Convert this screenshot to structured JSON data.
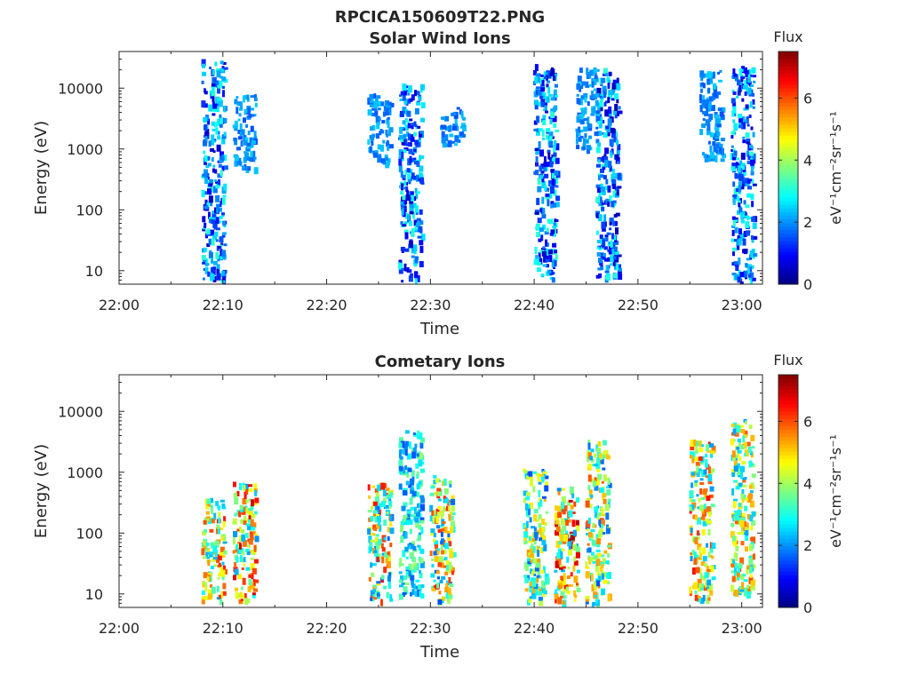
{
  "figure": {
    "title": "RPCICA150609T22.PNG"
  },
  "chart_data": [
    {
      "type": "heatmap",
      "title": "Solar Wind Ions",
      "xlabel": "Time",
      "ylabel": "Energy (eV)",
      "yscale": "log",
      "ylim": [
        6,
        40000
      ],
      "xlim": [
        "22:00",
        "23:02"
      ],
      "x_ticks": [
        "22:00",
        "22:10",
        "22:20",
        "22:30",
        "22:40",
        "22:50",
        "23:00"
      ],
      "y_ticks": [
        "10",
        "100",
        "1000",
        "10000"
      ],
      "colorbar": {
        "title": "Flux",
        "label": "eV⁻¹cm⁻²sr⁻¹s⁻¹",
        "range": [
          0,
          7.5
        ],
        "ticks": [
          "0",
          "2",
          "4",
          "6"
        ],
        "colormap": "jet"
      },
      "clusters": [
        {
          "time": "22:09",
          "energy_range": [
            6,
            30000
          ],
          "flux_range": [
            0.5,
            3.2
          ]
        },
        {
          "time": "22:12",
          "energy_range": [
            500,
            8000
          ],
          "flux_range": [
            1.5,
            2.5
          ]
        },
        {
          "time": "22:25",
          "energy_range": [
            600,
            9000
          ],
          "flux_range": [
            1.5,
            2.5
          ]
        },
        {
          "time": "22:28",
          "energy_range": [
            6,
            12000
          ],
          "flux_range": [
            0.5,
            3.2
          ]
        },
        {
          "time": "22:32",
          "energy_range": [
            1200,
            5000
          ],
          "flux_range": [
            1.5,
            2.5
          ]
        },
        {
          "time": "22:41",
          "energy_range": [
            6,
            25000
          ],
          "flux_range": [
            0.4,
            3.2
          ]
        },
        {
          "time": "22:45",
          "energy_range": [
            1000,
            22000
          ],
          "flux_range": [
            1.5,
            2.5
          ]
        },
        {
          "time": "22:47",
          "energy_range": [
            6,
            22000
          ],
          "flux_range": [
            0.4,
            3.2
          ]
        },
        {
          "time": "22:57",
          "energy_range": [
            700,
            20000
          ],
          "flux_range": [
            1.5,
            2.5
          ]
        },
        {
          "time": "23:00",
          "energy_range": [
            6,
            25000
          ],
          "flux_range": [
            0.5,
            3.2
          ]
        }
      ]
    },
    {
      "type": "heatmap",
      "title": "Cometary Ions",
      "xlabel": "Time",
      "ylabel": "Energy (eV)",
      "yscale": "log",
      "ylim": [
        6,
        40000
      ],
      "xlim": [
        "22:00",
        "23:02"
      ],
      "x_ticks": [
        "22:00",
        "22:10",
        "22:20",
        "22:30",
        "22:40",
        "22:50",
        "23:00"
      ],
      "y_ticks": [
        "10",
        "100",
        "1000",
        "10000"
      ],
      "colorbar": {
        "title": "Flux",
        "label": "eV⁻¹cm⁻²sr⁻¹s⁻¹",
        "range": [
          0,
          7.5
        ],
        "ticks": [
          "0",
          "2",
          "4",
          "6"
        ],
        "colormap": "jet"
      },
      "clusters": [
        {
          "time": "22:09",
          "energy_range": [
            8,
            400
          ],
          "flux_range": [
            2.0,
            6.5
          ]
        },
        {
          "time": "22:12",
          "energy_range": [
            8,
            700
          ],
          "flux_range": [
            2.0,
            7.0
          ]
        },
        {
          "time": "22:25",
          "energy_range": [
            8,
            700
          ],
          "flux_range": [
            1.5,
            6.5
          ]
        },
        {
          "time": "22:28",
          "energy_range": [
            10,
            5000
          ],
          "flux_range": [
            1.5,
            4.0
          ]
        },
        {
          "time": "22:31",
          "energy_range": [
            8,
            900
          ],
          "flux_range": [
            1.5,
            6.5
          ]
        },
        {
          "time": "22:40",
          "energy_range": [
            6,
            1200
          ],
          "flux_range": [
            1.5,
            5.5
          ]
        },
        {
          "time": "22:43",
          "energy_range": [
            6,
            600
          ],
          "flux_range": [
            2.0,
            7.2
          ]
        },
        {
          "time": "22:46",
          "energy_range": [
            6,
            3500
          ],
          "flux_range": [
            1.5,
            6.0
          ]
        },
        {
          "time": "22:56",
          "energy_range": [
            8,
            3500
          ],
          "flux_range": [
            2.0,
            6.5
          ]
        },
        {
          "time": "23:00",
          "energy_range": [
            10,
            8000
          ],
          "flux_range": [
            2.0,
            6.0
          ]
        }
      ]
    }
  ]
}
